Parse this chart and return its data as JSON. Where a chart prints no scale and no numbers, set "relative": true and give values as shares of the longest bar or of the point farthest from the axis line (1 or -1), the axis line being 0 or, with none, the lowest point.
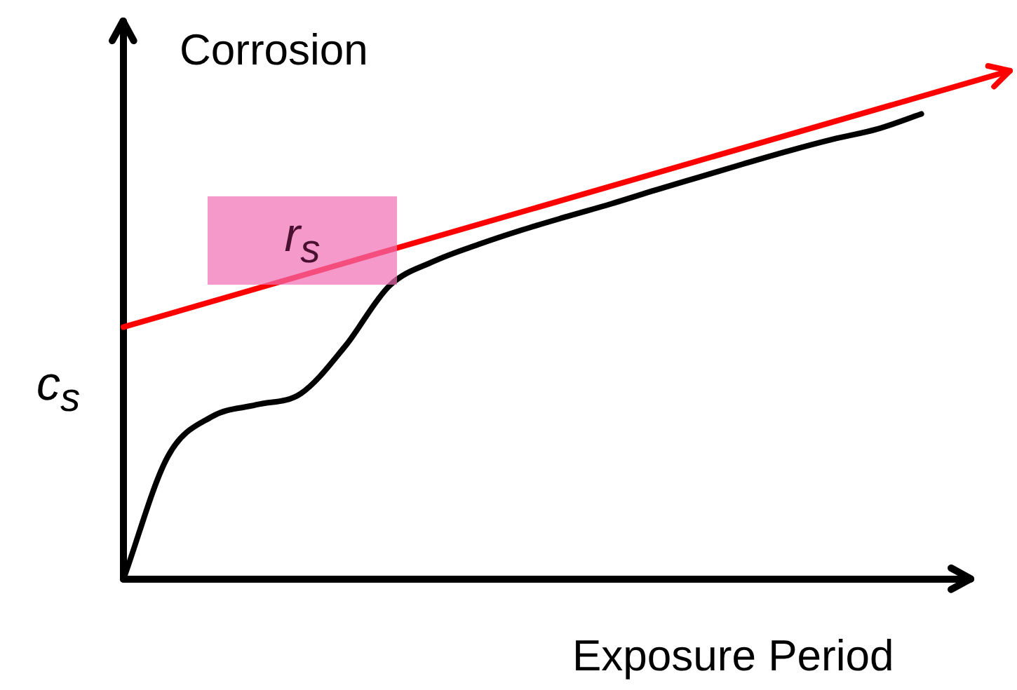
{
  "chart_data": {
    "type": "line",
    "relative": true,
    "ylabel": "Corrosion",
    "xlabel": "Exposure Period",
    "annotations": [
      "c$_{s}$",
      "r$_{s}$"
    ],
    "legend": false,
    "marker": "none",
    "line_style": "solid",
    "categories": [
      null,
      null,
      null,
      null,
      null,
      null,
      null,
      null,
      null,
      null,
      null,
      null,
      null,
      null,
      null,
      null,
      null,
      null,
      null,
      null,
      null
    ],
    "series": [
      {
        "color": "#000000",
        "values": [
          0,
          0.241,
          0.32,
          0.343,
          0.365,
          0.458,
          0.577,
          0.625,
          0.658,
          0.687,
          0.713,
          0.738,
          0.765,
          0.791,
          0.817,
          0.842,
          0.865,
          0.885,
          0.915,
          null,
          null
        ]
      },
      {
        "color": "#ff0000",
        "values": [
          0.496,
          null,
          null,
          null,
          null,
          null,
          null,
          null,
          null,
          null,
          null,
          null,
          null,
          null,
          null,
          null,
          null,
          null,
          null,
          null,
          1
        ]
      }
    ]
  }
}
